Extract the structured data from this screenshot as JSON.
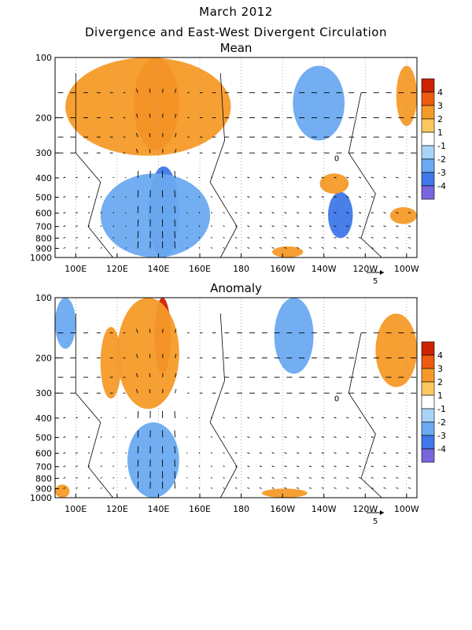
{
  "figure": {
    "title_line1": "March 2012",
    "title_line2": "Divergence and East-West Divergent Circulation"
  },
  "chart_data": [
    {
      "type": "heatmap",
      "panel_title": "Mean",
      "x_ticks": [
        "100E",
        "120E",
        "140E",
        "160E",
        "180",
        "160W",
        "140W",
        "120W",
        "100W"
      ],
      "x_tick_lon": [
        100,
        120,
        140,
        160,
        180,
        200,
        220,
        240,
        260
      ],
      "xlim_lon": [
        90,
        265
      ],
      "y_ticks": [
        "100",
        "200",
        "300",
        "400",
        "500",
        "600",
        "700",
        "800",
        "900",
        "1000"
      ],
      "y_tick_values": [
        100,
        200,
        300,
        400,
        500,
        600,
        700,
        800,
        900,
        1000
      ],
      "ylim_hPa": [
        100,
        1000
      ],
      "y_scale": "log",
      "vector_reference_label": "5",
      "contour_label": "0",
      "colorbar": {
        "labels": [
          "4",
          "3",
          "2",
          "1",
          "-1",
          "-2",
          "-3",
          "-4"
        ],
        "colors": [
          "#cc2200",
          "#ee5a10",
          "#f59a28",
          "#fbc860",
          "#ffffff",
          "#a8d4f8",
          "#6aaaf0",
          "#3f78e8",
          "#7766dd"
        ]
      },
      "regions": [
        {
          "lon": [
            128,
            150
          ],
          "p": [
            100,
            290
          ],
          "level": 4
        },
        {
          "lon": [
            95,
            175
          ],
          "p": [
            100,
            310
          ],
          "level": 2
        },
        {
          "lon": [
            205,
            230
          ],
          "p": [
            110,
            260
          ],
          "level": -2
        },
        {
          "lon": [
            135,
            150
          ],
          "p": [
            350,
            1000
          ],
          "level": -3
        },
        {
          "lon": [
            112,
            165
          ],
          "p": [
            380,
            1000
          ],
          "level": -2
        },
        {
          "lon": [
            222,
            234
          ],
          "p": [
            470,
            800
          ],
          "level": -3
        },
        {
          "lon": [
            195,
            210
          ],
          "p": [
            880,
            1000
          ],
          "level": 2
        },
        {
          "lon": [
            218,
            232
          ],
          "p": [
            380,
            480
          ],
          "level": 2
        },
        {
          "lon": [
            255,
            265
          ],
          "p": [
            110,
            220
          ],
          "level": 2
        },
        {
          "lon": [
            252,
            265
          ],
          "p": [
            560,
            680
          ],
          "level": 2
        }
      ]
    },
    {
      "type": "heatmap",
      "panel_title": "Anomaly",
      "x_ticks": [
        "100E",
        "120E",
        "140E",
        "160E",
        "180",
        "160W",
        "140W",
        "120W",
        "100W"
      ],
      "x_tick_lon": [
        100,
        120,
        140,
        160,
        180,
        200,
        220,
        240,
        260
      ],
      "xlim_lon": [
        90,
        265
      ],
      "y_ticks": [
        "100",
        "200",
        "300",
        "400",
        "500",
        "600",
        "700",
        "800",
        "900",
        "1000"
      ],
      "y_tick_values": [
        100,
        200,
        300,
        400,
        500,
        600,
        700,
        800,
        900,
        1000
      ],
      "ylim_hPa": [
        100,
        1000
      ],
      "y_scale": "log",
      "vector_reference_label": "5",
      "contour_label": "0",
      "colorbar": {
        "labels": [
          "4",
          "3",
          "2",
          "1",
          "-1",
          "-2",
          "-3",
          "-4"
        ],
        "colors": [
          "#cc2200",
          "#ee5a10",
          "#f59a28",
          "#fbc860",
          "#ffffff",
          "#a8d4f8",
          "#6aaaf0",
          "#3f78e8",
          "#7766dd"
        ]
      },
      "regions": [
        {
          "lon": [
            138,
            146
          ],
          "p": [
            100,
            240
          ],
          "level": 4
        },
        {
          "lon": [
            120,
            150
          ],
          "p": [
            100,
            360
          ],
          "level": 2
        },
        {
          "lon": [
            196,
            215
          ],
          "p": [
            100,
            240
          ],
          "level": -2
        },
        {
          "lon": [
            125,
            150
          ],
          "p": [
            420,
            1000
          ],
          "level": -2
        },
        {
          "lon": [
            245,
            265
          ],
          "p": [
            120,
            280
          ],
          "level": 2
        },
        {
          "lon": [
            112,
            122
          ],
          "p": [
            140,
            320
          ],
          "level": 2
        },
        {
          "lon": [
            90,
            97
          ],
          "p": [
            860,
            1000
          ],
          "level": 2
        },
        {
          "lon": [
            190,
            212
          ],
          "p": [
            900,
            1000
          ],
          "level": 2
        },
        {
          "lon": [
            90,
            100
          ],
          "p": [
            100,
            180
          ],
          "level": -2
        }
      ]
    }
  ]
}
